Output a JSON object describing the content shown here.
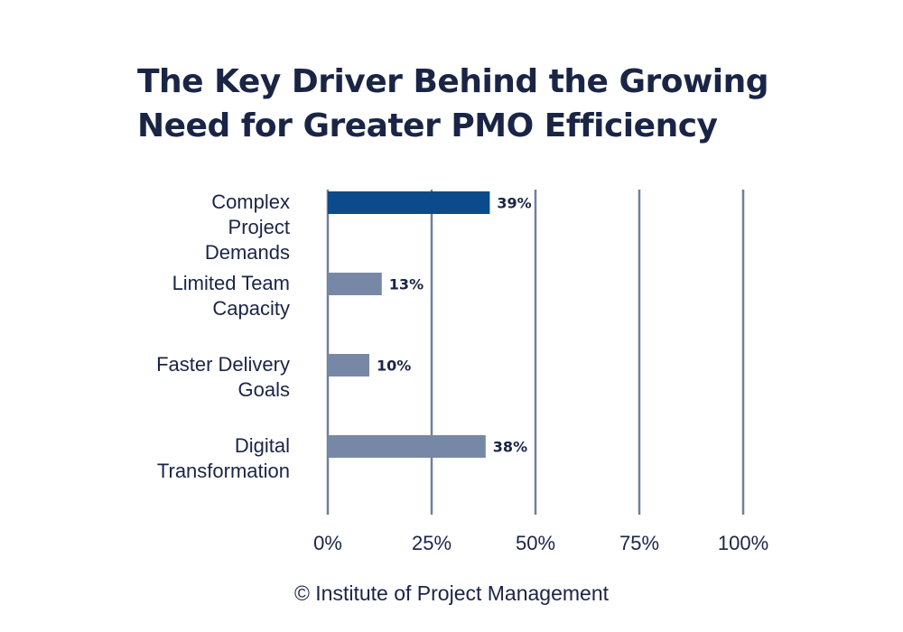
{
  "title": "The Key Driver Behind the Growing Need for Greater PMO Efficiency",
  "footer": "© Institute of Project Management",
  "chart_data": {
    "type": "bar",
    "orientation": "horizontal",
    "title": "The Key Driver Behind the Growing Need for Greater PMO Efficiency",
    "categories": [
      [
        "Complex",
        "Project",
        "Demands"
      ],
      [
        "Limited Team",
        "Capacity"
      ],
      [
        "Faster Delivery",
        "Goals"
      ],
      [
        "Digital",
        "Transformation"
      ]
    ],
    "values": [
      39,
      13,
      10,
      38
    ],
    "value_labels": [
      "39%",
      "13%",
      "10%",
      "38%"
    ],
    "bar_colors": [
      "#0b4a8b",
      "#7788a6",
      "#7788a6",
      "#7788a6"
    ],
    "xlim": [
      0,
      100
    ],
    "xticks": [
      0,
      25,
      50,
      75,
      100
    ],
    "xtick_labels": [
      "0%",
      "25%",
      "50%",
      "75%",
      "100%"
    ],
    "grid": true,
    "legend": false
  }
}
